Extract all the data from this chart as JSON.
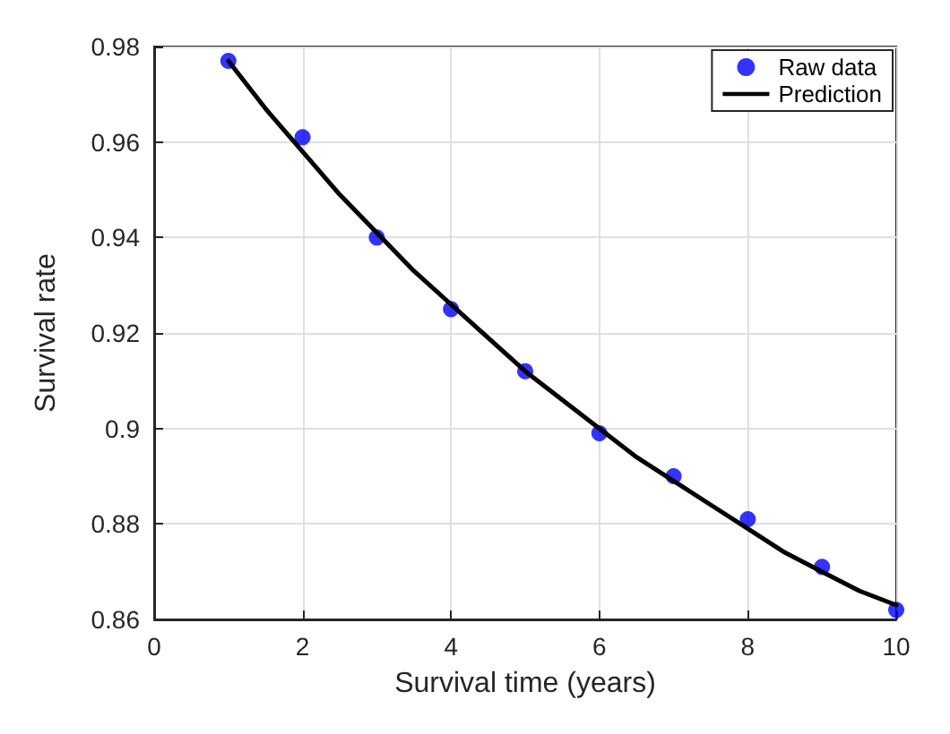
{
  "chart_data": {
    "type": "line",
    "xlabel": "Survival time (years)",
    "ylabel": "Survival rate",
    "xlim": [
      0,
      10
    ],
    "xticks": [
      0,
      2,
      4,
      6,
      8,
      10
    ],
    "ylim": [
      0.86,
      0.98
    ],
    "yticks": [
      0.86,
      0.88,
      0.9,
      0.92,
      0.94,
      0.96,
      0.98
    ],
    "grid": true,
    "legend": "top right",
    "series": [
      {
        "name": "Raw data",
        "type": "scatter",
        "marker": "circle",
        "color": "#0000ff",
        "x": [
          1,
          2,
          3,
          4,
          5,
          6,
          7,
          8,
          9,
          10
        ],
        "values": [
          0.977,
          0.961,
          0.94,
          0.925,
          0.912,
          0.899,
          0.89,
          0.881,
          0.871,
          0.862
        ]
      },
      {
        "name": "Prediction",
        "type": "line",
        "marker": "none",
        "line_style": "solid",
        "color": "#000000",
        "x": [
          1,
          1.5,
          2,
          2.5,
          3,
          3.5,
          4,
          4.5,
          5,
          5.5,
          6,
          6.5,
          7,
          7.5,
          8,
          8.5,
          9,
          9.5,
          10
        ],
        "values": [
          0.977,
          0.967,
          0.958,
          0.949,
          0.941,
          0.933,
          0.926,
          0.919,
          0.912,
          0.906,
          0.9,
          0.894,
          0.889,
          0.884,
          0.879,
          0.874,
          0.87,
          0.866,
          0.863
        ]
      }
    ]
  }
}
